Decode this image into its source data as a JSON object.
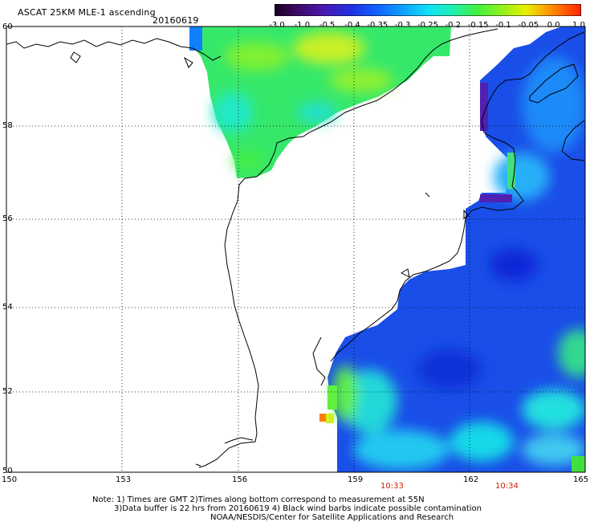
{
  "header": {
    "title": "ASCAT 25KM MLE-1 ascending",
    "date": "20160619"
  },
  "colorbar": {
    "labels": [
      "-3.0",
      "-1.0",
      "-0.5",
      "-0.4",
      "-0.35",
      "-0.3",
      "-0.25",
      "-0.2",
      "-0.15",
      "-0.1",
      "-0.05",
      "0.0",
      "1.0"
    ],
    "colors": [
      "#2a003a",
      "#5a1090",
      "#3020c8",
      "#1040f0",
      "#1a70ff",
      "#10b0ff",
      "#18e8f0",
      "#22f0a0",
      "#40f040",
      "#a0f020",
      "#f0f000",
      "#ffa000",
      "#ff3000"
    ]
  },
  "axes": {
    "lat_labels": [
      "60",
      "58",
      "56",
      "54",
      "52",
      "50"
    ],
    "lon_labels": [
      "150",
      "153",
      "156",
      "159",
      "162",
      "165"
    ]
  },
  "times": [
    "10:33",
    "10:34"
  ],
  "notes": [
    "Note: 1) Times are GMT 2)Times along bottom correspond to measurement at 55N",
    "3)Data buffer is 22 hrs from 20160619 4) Black wind barbs indicate possible contamination",
    "NOAA/NESDIS/Center for Satellite Applications and Research"
  ]
}
